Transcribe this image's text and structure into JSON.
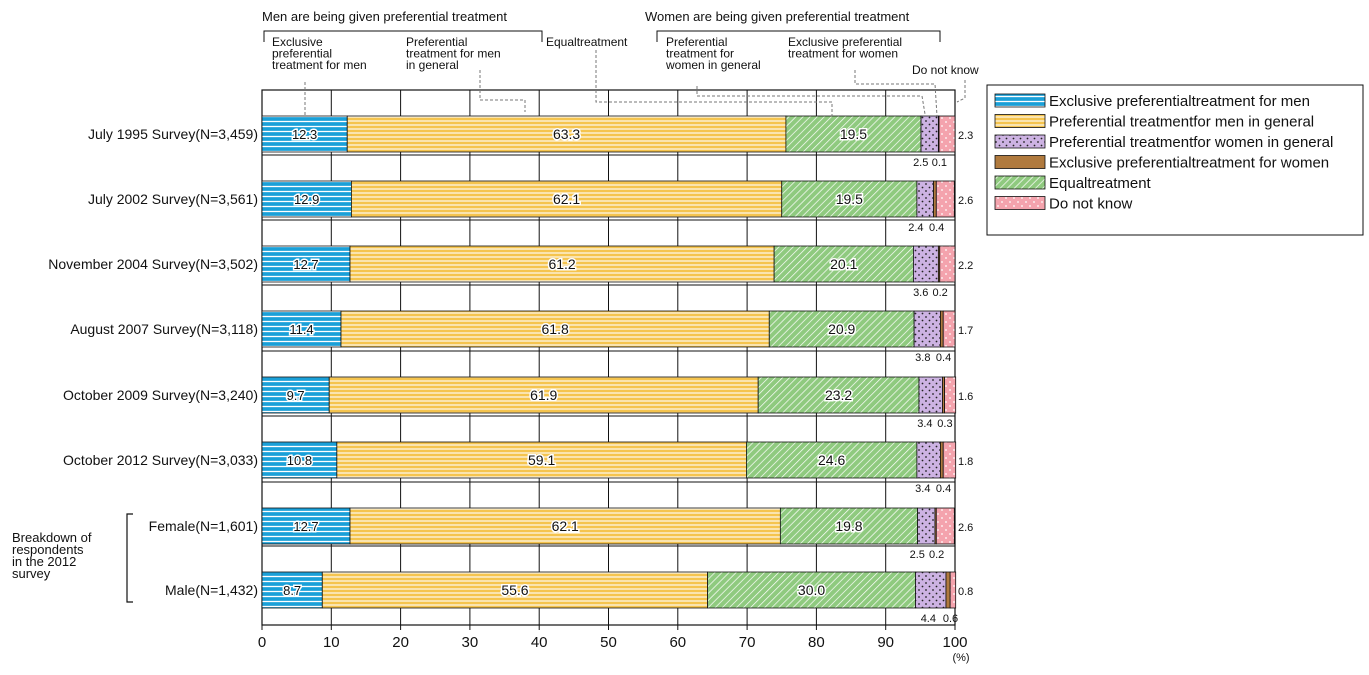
{
  "chart_data": {
    "type": "bar",
    "orientation": "horizontal",
    "stacked": true,
    "x_unit": "(%)",
    "xlim": [
      0,
      100
    ],
    "x_ticks": [
      "0",
      "10",
      "20",
      "30",
      "40",
      "50",
      "60",
      "70",
      "80",
      "90",
      "100"
    ],
    "grid": true,
    "legend_position": "top-right",
    "category_labels": [
      "July 1995 Survey(N=3,459)",
      "July 2002 Survey(N=3,561)",
      "November 2004 Survey(N=3,502)",
      "August 2007 Survey(N=3,118)",
      "October 2009 Survey(N=3,240)",
      "October 2012 Survey(N=3,033)",
      "Female(N=1,601)",
      "Male(N=1,432)"
    ],
    "breakdown_group_label": [
      "Breakdown of",
      "respondents",
      "in the 2012",
      "survey"
    ],
    "legend": [
      "Exclusive preferentialtreatment for men",
      "Preferential treatmentfor men in general",
      "Preferential treatmentfor women in general",
      "Exclusive preferentialtreatment for women",
      "Equaltreatment",
      "Do not know"
    ],
    "series_order": [
      "excl_men",
      "pref_men",
      "equal",
      "pref_women",
      "excl_women",
      "dont_know"
    ],
    "series": [
      {
        "key": "excl_men",
        "color": "#1aa0d8",
        "values": [
          12.3,
          12.9,
          12.7,
          11.4,
          9.7,
          10.8,
          12.7,
          8.7
        ],
        "labels": [
          "12.3",
          "12.9",
          "12.7",
          "11.4",
          "9.7",
          "10.8",
          "12.7",
          "8.7"
        ]
      },
      {
        "key": "pref_men",
        "color": "#f5c44e",
        "values": [
          63.3,
          62.1,
          61.2,
          61.8,
          61.9,
          59.1,
          62.1,
          55.6
        ],
        "labels": [
          "63.3",
          "62.1",
          "61.2",
          "61.8",
          "61.9",
          "59.1",
          "62.1",
          "55.6"
        ]
      },
      {
        "key": "equal",
        "color": "#8fca7f",
        "values": [
          19.5,
          19.5,
          20.1,
          20.9,
          23.2,
          24.6,
          19.8,
          30.0
        ],
        "labels": [
          "19.5",
          "19.5",
          "20.1",
          "20.9",
          "23.2",
          "24.6",
          "19.8",
          "30.0"
        ]
      },
      {
        "key": "pref_women",
        "color": "#cdb3e3",
        "values": [
          2.5,
          2.4,
          3.6,
          3.8,
          3.4,
          3.4,
          2.5,
          4.4
        ],
        "labels": [
          "2.5",
          "2.4",
          "3.6",
          "3.8",
          "3.4",
          "3.4",
          "2.5",
          "4.4"
        ]
      },
      {
        "key": "excl_women",
        "color": "#b07a3e",
        "values": [
          0.1,
          0.4,
          0.2,
          0.4,
          0.3,
          0.4,
          0.2,
          0.6
        ],
        "labels": [
          "0.1",
          "0.4",
          "0.2",
          "0.4",
          "0.3",
          "0.4",
          "0.2",
          "0.6"
        ]
      },
      {
        "key": "dont_know",
        "color": "#f4a3ad",
        "values": [
          2.3,
          2.6,
          2.2,
          1.7,
          1.6,
          1.8,
          2.6,
          0.8
        ],
        "labels": [
          "2.3",
          "2.6",
          "2.2",
          "1.7",
          "1.6",
          "1.8",
          "2.6",
          "0.8"
        ]
      }
    ],
    "annotations": {
      "group_men": "Men are being given preferential treatment",
      "group_women": "Women are being given preferential treatment",
      "excl_men": [
        "Exclusive",
        "preferential",
        "treatment for men"
      ],
      "pref_men": [
        "Preferential",
        "treatment for men",
        "in general"
      ],
      "equal": [
        "Equaltreatment"
      ],
      "pref_women": [
        "Preferential",
        "treatment  for",
        "women in general"
      ],
      "excl_women": [
        "Exclusive preferential",
        "treatment for women"
      ],
      "dont_know": [
        "Do not know"
      ]
    }
  }
}
